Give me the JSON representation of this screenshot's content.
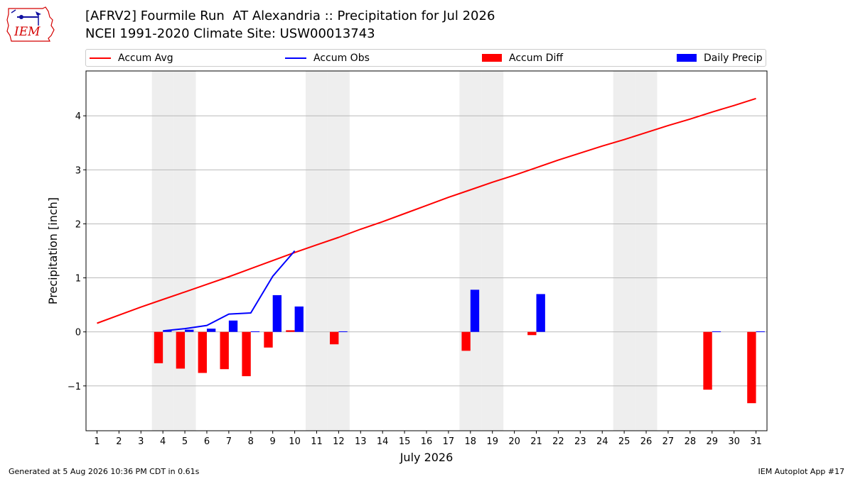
{
  "header": {
    "title": "[AFRV2] Fourmile Run  AT Alexandria :: Precipitation for Jul 2026",
    "subtitle": "NCEI 1991-2020 Climate Site: USW00013743",
    "logo_text": "IEM"
  },
  "footer": {
    "left": "Generated at 5 Aug 2026 10:36 PM CDT in 0.61s",
    "right": "IEM Autoplot App #17"
  },
  "colors": {
    "avg": "#ff0000",
    "obs": "#0000ff",
    "diff": "#ff0000",
    "daily": "#0000ff",
    "weekend": "#eeeeee",
    "grid": "#b0b0b0"
  },
  "chart_data": {
    "type": "bar",
    "xlabel": "July 2026",
    "ylabel": "Precipitation [inch]",
    "xlim": [
      0.5,
      31.5
    ],
    "ylim": [
      -1.83,
      4.83
    ],
    "yticks": [
      -1,
      0,
      1,
      2,
      3,
      4
    ],
    "ytick_labels": [
      "−1",
      "0",
      "1",
      "2",
      "3",
      "4"
    ],
    "days": [
      1,
      2,
      3,
      4,
      5,
      6,
      7,
      8,
      9,
      10,
      11,
      12,
      13,
      14,
      15,
      16,
      17,
      18,
      19,
      20,
      21,
      22,
      23,
      24,
      25,
      26,
      27,
      28,
      29,
      30,
      31
    ],
    "weekend_days": [
      4,
      5,
      11,
      12,
      18,
      19,
      25,
      26
    ],
    "legend": [
      {
        "label": "Accum Avg",
        "kind": "line",
        "color": "#ff0000"
      },
      {
        "label": "Accum Obs",
        "kind": "line",
        "color": "#0000ff"
      },
      {
        "label": "Accum Diff",
        "kind": "bar",
        "color": "#ff0000"
      },
      {
        "label": "Daily Precip",
        "kind": "bar",
        "color": "#0000ff"
      }
    ],
    "series": [
      {
        "name": "Accum Avg",
        "type": "line",
        "x": [
          1,
          2,
          3,
          4,
          5,
          6,
          7,
          8,
          9,
          10,
          11,
          12,
          13,
          14,
          15,
          16,
          17,
          18,
          19,
          20,
          21,
          22,
          23,
          24,
          25,
          26,
          27,
          28,
          29,
          30,
          31
        ],
        "values": [
          0.16,
          0.31,
          0.46,
          0.6,
          0.74,
          0.88,
          1.02,
          1.17,
          1.32,
          1.47,
          1.61,
          1.75,
          1.9,
          2.04,
          2.19,
          2.34,
          2.49,
          2.63,
          2.77,
          2.9,
          3.04,
          3.18,
          3.31,
          3.44,
          3.56,
          3.69,
          3.82,
          3.94,
          4.07,
          4.19,
          4.32
        ]
      },
      {
        "name": "Accum Obs",
        "type": "line",
        "x": [
          4,
          5,
          6,
          7,
          8,
          9,
          10
        ],
        "values": [
          0.02,
          0.06,
          0.12,
          0.33,
          0.35,
          1.03,
          1.5
        ]
      },
      {
        "name": "Accum Diff",
        "type": "bar",
        "x": [
          4,
          5,
          6,
          7,
          8,
          9,
          10,
          12,
          18,
          21,
          29,
          31
        ],
        "values": [
          -0.58,
          -0.68,
          -0.76,
          -0.69,
          -0.82,
          -0.29,
          0.03,
          -0.23,
          -0.35,
          -0.06,
          -1.07,
          -1.32
        ]
      },
      {
        "name": "Daily Precip",
        "type": "bar",
        "x": [
          4,
          5,
          6,
          7,
          8,
          9,
          10,
          12,
          18,
          21,
          29,
          31
        ],
        "values": [
          0.02,
          0.04,
          0.06,
          0.21,
          0.01,
          0.68,
          0.47,
          0.01,
          0.78,
          0.7,
          0.01,
          0.01
        ]
      }
    ]
  }
}
